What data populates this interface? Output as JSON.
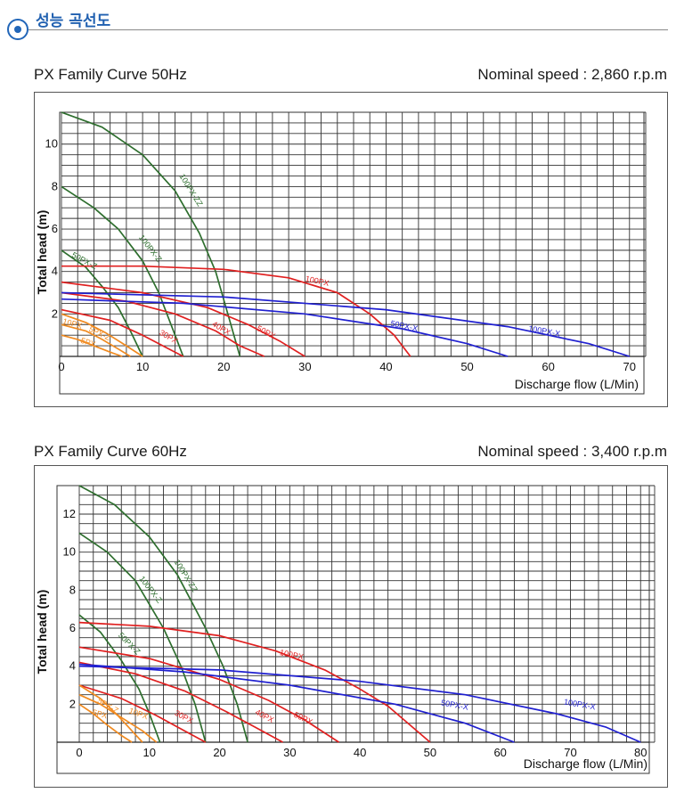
{
  "header": {
    "title": "성능 곡선도"
  },
  "colors": {
    "green": "#2e6e2e",
    "red": "#e02020",
    "blue": "#2020d0",
    "orange": "#f08a20",
    "accent": "#2060b0"
  },
  "chart_data": [
    {
      "type": "line",
      "title": "PX Family Curve 50Hz",
      "subtitle": "Nominal speed : 2,860 r.p.m",
      "xlabel": "Discharge flow (L/Min)",
      "ylabel": "Total head (m)",
      "xlim": [
        0,
        72
      ],
      "ylim": [
        0,
        11.5
      ],
      "xticks": [
        0,
        10,
        20,
        30,
        40,
        50,
        60,
        70
      ],
      "yticks": [
        2,
        4,
        6,
        8,
        10
      ],
      "series": [
        {
          "name": "100PX-ZZ",
          "color": "green",
          "x": [
            0,
            5,
            10,
            14,
            17,
            19,
            20.5,
            22
          ],
          "y": [
            11.5,
            10.8,
            9.5,
            7.8,
            5.8,
            4.0,
            2.0,
            0
          ]
        },
        {
          "name": "100PX-Z",
          "color": "green",
          "x": [
            0,
            4,
            7,
            10,
            12,
            13.5,
            15
          ],
          "y": [
            8.0,
            7.0,
            6.0,
            4.5,
            3.0,
            1.5,
            0
          ]
        },
        {
          "name": "50PX-Z",
          "color": "green",
          "x": [
            0,
            3,
            5,
            7,
            8.5,
            10
          ],
          "y": [
            5.0,
            4.2,
            3.3,
            2.3,
            1.2,
            0
          ]
        },
        {
          "name": "100PX",
          "color": "red",
          "x": [
            0,
            10,
            20,
            28,
            34,
            38,
            41,
            43
          ],
          "y": [
            4.25,
            4.25,
            4.1,
            3.7,
            3.0,
            2.0,
            1.0,
            0
          ]
        },
        {
          "name": "50PX",
          "color": "red",
          "x": [
            0,
            10,
            18,
            23,
            27,
            30
          ],
          "y": [
            3.5,
            3.0,
            2.3,
            1.5,
            0.7,
            0
          ]
        },
        {
          "name": "40PX",
          "color": "red",
          "x": [
            0,
            8,
            14,
            19,
            22,
            25
          ],
          "y": [
            3.0,
            2.6,
            2.0,
            1.2,
            0.5,
            0
          ]
        },
        {
          "name": "30PX",
          "color": "red",
          "x": [
            0,
            6,
            10,
            13,
            15
          ],
          "y": [
            2.2,
            1.7,
            1.0,
            0.4,
            0
          ]
        },
        {
          "name": "100PX-X",
          "color": "blue",
          "x": [
            0,
            20,
            40,
            55,
            65,
            70
          ],
          "y": [
            3.0,
            2.8,
            2.2,
            1.4,
            0.6,
            0
          ]
        },
        {
          "name": "50PX-X",
          "color": "blue",
          "x": [
            0,
            15,
            30,
            42,
            50,
            55
          ],
          "y": [
            2.7,
            2.5,
            2.0,
            1.3,
            0.6,
            0
          ]
        },
        {
          "name": "10PX",
          "color": "orange",
          "x": [
            0,
            3,
            5.5,
            8,
            10
          ],
          "y": [
            2.0,
            1.6,
            1.1,
            0.5,
            0
          ]
        },
        {
          "name": "5PX-Z",
          "color": "orange",
          "x": [
            0,
            3,
            5,
            7,
            8.5
          ],
          "y": [
            1.5,
            1.2,
            0.8,
            0.35,
            0
          ]
        },
        {
          "name": "5PX",
          "color": "orange",
          "x": [
            0,
            2,
            4,
            6,
            7.5
          ],
          "y": [
            1.0,
            0.8,
            0.5,
            0.2,
            0
          ]
        }
      ],
      "labels": [
        {
          "text": "100PX-ZZ",
          "color": "green",
          "x": 14.5,
          "y": 8.5,
          "rot": 58
        },
        {
          "text": "100PX-Z",
          "color": "green",
          "x": 9.5,
          "y": 5.6,
          "rot": 52
        },
        {
          "text": "50PX-Z",
          "color": "green",
          "x": 1.2,
          "y": 4.7,
          "rot": 28
        },
        {
          "text": "100PX",
          "color": "red",
          "x": 30,
          "y": 3.55,
          "rot": 12
        },
        {
          "text": "50PX",
          "color": "red",
          "x": 24,
          "y": 1.25,
          "rot": 28
        },
        {
          "text": "40PX",
          "color": "red",
          "x": 18.5,
          "y": 1.45,
          "rot": 30
        },
        {
          "text": "30PX",
          "color": "red",
          "x": 12,
          "y": 1.05,
          "rot": 30
        },
        {
          "text": "100PX-X",
          "color": "blue",
          "x": 57.5,
          "y": 1.2,
          "rot": 10
        },
        {
          "text": "50PX-X",
          "color": "blue",
          "x": 40.5,
          "y": 1.45,
          "rot": 12
        },
        {
          "text": "10PX",
          "color": "orange",
          "x": 0.1,
          "y": 1.55,
          "rot": 15
        },
        {
          "text": "5PX-Z",
          "color": "orange",
          "x": 3.3,
          "y": 1.2,
          "rot": 25
        },
        {
          "text": "5PX",
          "color": "orange",
          "x": 2.3,
          "y": 0.65,
          "rot": 18
        }
      ]
    },
    {
      "type": "line",
      "title": "PX Family Curve 60Hz",
      "subtitle": "Nominal speed : 3,400 r.p.m",
      "xlabel": "Discharge flow (L/Min)",
      "ylabel": "Total head (m)",
      "xlim": [
        0,
        82
      ],
      "ylim": [
        0,
        13.5
      ],
      "xticks": [
        0,
        10,
        20,
        30,
        40,
        50,
        60,
        70,
        80
      ],
      "yticks": [
        2,
        4,
        6,
        8,
        10,
        12
      ],
      "series": [
        {
          "name": "100PX-ZZ",
          "color": "green",
          "x": [
            0,
            5,
            10,
            14,
            18,
            20.5,
            22.5,
            24
          ],
          "y": [
            13.5,
            12.5,
            10.8,
            8.8,
            6.0,
            4.0,
            2.0,
            0
          ]
        },
        {
          "name": "100PX-Z",
          "color": "green",
          "x": [
            0,
            4,
            8,
            12,
            14.5,
            16.5,
            18
          ],
          "y": [
            11.0,
            10.0,
            8.5,
            6.0,
            4.0,
            2.0,
            0
          ]
        },
        {
          "name": "50PX-Z",
          "color": "green",
          "x": [
            0,
            3,
            6,
            8.5,
            10,
            11.5
          ],
          "y": [
            6.7,
            5.8,
            4.3,
            2.8,
            1.5,
            0
          ]
        },
        {
          "name": "100PX",
          "color": "red",
          "x": [
            0,
            10,
            20,
            28,
            35,
            40,
            44,
            50
          ],
          "y": [
            6.3,
            6.1,
            5.6,
            4.8,
            3.8,
            2.8,
            1.9,
            0
          ]
        },
        {
          "name": "50PX",
          "color": "red",
          "x": [
            0,
            10,
            20,
            27,
            32,
            37
          ],
          "y": [
            5.0,
            4.4,
            3.3,
            2.2,
            1.2,
            0
          ]
        },
        {
          "name": "40PX",
          "color": "red",
          "x": [
            0,
            8,
            15,
            21,
            25,
            29
          ],
          "y": [
            4.2,
            3.6,
            2.7,
            1.6,
            0.8,
            0
          ]
        },
        {
          "name": "30PX",
          "color": "red",
          "x": [
            0,
            6,
            11,
            15,
            18
          ],
          "y": [
            3.0,
            2.3,
            1.4,
            0.6,
            0
          ]
        },
        {
          "name": "100PX-X",
          "color": "blue",
          "x": [
            0,
            20,
            40,
            55,
            68,
            75,
            80
          ],
          "y": [
            4.0,
            3.8,
            3.2,
            2.5,
            1.5,
            0.8,
            0
          ]
        },
        {
          "name": "50PX-X",
          "color": "blue",
          "x": [
            0,
            15,
            30,
            45,
            55,
            62
          ],
          "y": [
            4.1,
            3.7,
            3.0,
            2.0,
            1.0,
            0
          ]
        },
        {
          "name": "10PX",
          "color": "orange",
          "x": [
            0,
            3,
            6,
            9,
            11
          ],
          "y": [
            2.5,
            2.0,
            1.3,
            0.6,
            0
          ]
        },
        {
          "name": "5PX-Z",
          "color": "orange",
          "x": [
            0,
            3,
            5.5,
            7.5,
            9
          ],
          "y": [
            3.0,
            2.3,
            1.4,
            0.6,
            0
          ]
        },
        {
          "name": "5PX",
          "color": "orange",
          "x": [
            0,
            2,
            4,
            6,
            7.5
          ],
          "y": [
            2.0,
            1.5,
            0.9,
            0.35,
            0
          ]
        }
      ],
      "labels": [
        {
          "text": "100PX-ZZ",
          "color": "green",
          "x": 13.5,
          "y": 9.5,
          "rot": 58
        },
        {
          "text": "100PX-Z",
          "color": "green",
          "x": 8.5,
          "y": 8.6,
          "rot": 52
        },
        {
          "text": "50PX-Z",
          "color": "green",
          "x": 5.5,
          "y": 5.6,
          "rot": 45
        },
        {
          "text": "100PX",
          "color": "red",
          "x": 28.5,
          "y": 4.6,
          "rot": 12
        },
        {
          "text": "50PX",
          "color": "red",
          "x": 30.5,
          "y": 1.35,
          "rot": 25
        },
        {
          "text": "40PX",
          "color": "red",
          "x": 25,
          "y": 1.5,
          "rot": 28
        },
        {
          "text": "30PX",
          "color": "red",
          "x": 13.5,
          "y": 1.45,
          "rot": 28
        },
        {
          "text": "100PX-X",
          "color": "blue",
          "x": 69,
          "y": 2.0,
          "rot": 10
        },
        {
          "text": "50PX-X",
          "color": "blue",
          "x": 51.5,
          "y": 1.95,
          "rot": 10
        },
        {
          "text": "10PX",
          "color": "orange",
          "x": 7,
          "y": 1.55,
          "rot": 20
        },
        {
          "text": "5PX-Z",
          "color": "orange",
          "x": 2.5,
          "y": 2.1,
          "rot": 30
        },
        {
          "text": "5PX",
          "color": "orange",
          "x": 1.8,
          "y": 1.45,
          "rot": 15
        }
      ]
    }
  ]
}
